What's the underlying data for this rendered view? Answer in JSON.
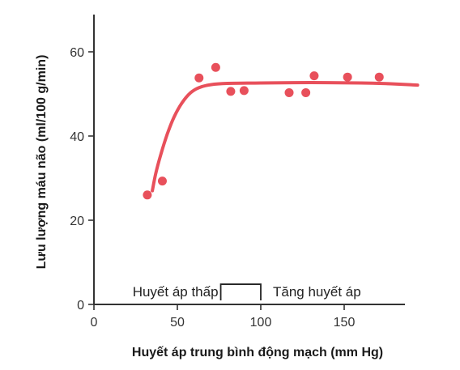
{
  "chart_data": {
    "type": "scatter",
    "xlabel": "Huyết áp trung bình động mạch (mm Hg)",
    "ylabel": "Lưu lượng máu não (ml/100 g/min)",
    "xlim": [
      0,
      190
    ],
    "ylim": [
      0,
      68
    ],
    "xticks": [
      0,
      50,
      100,
      150
    ],
    "yticks": [
      0,
      20,
      40,
      60
    ],
    "grid": false,
    "colors": {
      "series": "#e8505b",
      "axis": "#333333"
    },
    "points": [
      {
        "x": 32,
        "y": 26
      },
      {
        "x": 41,
        "y": 29.3
      },
      {
        "x": 63,
        "y": 53.8
      },
      {
        "x": 73,
        "y": 56.3
      },
      {
        "x": 82,
        "y": 50.6
      },
      {
        "x": 90,
        "y": 50.8
      },
      {
        "x": 117,
        "y": 50.3
      },
      {
        "x": 127,
        "y": 50.3
      },
      {
        "x": 132,
        "y": 54.3
      },
      {
        "x": 152,
        "y": 54
      },
      {
        "x": 171,
        "y": 54
      }
    ],
    "fit_curve": [
      {
        "x": 35,
        "y": 27
      },
      {
        "x": 37,
        "y": 31
      },
      {
        "x": 40,
        "y": 35.5
      },
      {
        "x": 44,
        "y": 40.5
      },
      {
        "x": 48,
        "y": 44.5
      },
      {
        "x": 53,
        "y": 48
      },
      {
        "x": 58,
        "y": 50.3
      },
      {
        "x": 63,
        "y": 51.5
      },
      {
        "x": 70,
        "y": 52.2
      },
      {
        "x": 80,
        "y": 52.5
      },
      {
        "x": 100,
        "y": 52.6
      },
      {
        "x": 130,
        "y": 52.7
      },
      {
        "x": 160,
        "y": 52.6
      },
      {
        "x": 178,
        "y": 52.4
      },
      {
        "x": 194,
        "y": 52.1
      }
    ],
    "autoregulation_bracket": {
      "x_start": 76,
      "x_end": 100,
      "y": 4.8
    },
    "annotations": {
      "low": "Huyết áp thấp",
      "high": "Tăng huyết áp"
    }
  }
}
